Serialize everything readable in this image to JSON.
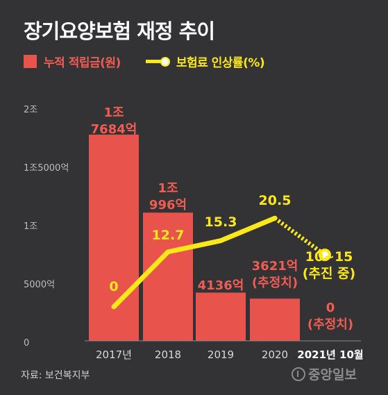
{
  "title": "장기요양보험 재정 추이",
  "legend": {
    "bar_label": "누적 적립금(원)",
    "line_label": "보험료 인상률(%)"
  },
  "colors": {
    "bar": "#e8544c",
    "bar_label": "#f15d52",
    "line": "#ffe81a",
    "axis_text": "#bdbdbd",
    "background": "#333335"
  },
  "source": "자료: 보건복지부",
  "logo": "중앙일보",
  "chart_data": {
    "type": "bar",
    "categories": [
      "2017년",
      "2018",
      "2019",
      "2020",
      "2021년 10월"
    ],
    "y_ticks": [
      "2조",
      "1조5000억",
      "1조",
      "5000억",
      "0"
    ],
    "ylim": [
      0,
      20000
    ],
    "grid": false,
    "series": [
      {
        "name": "누적 적립금(원)",
        "type": "bar",
        "values": [
          17684,
          10996,
          4136,
          3621,
          0
        ],
        "labels": [
          [
            "1조",
            "7684억"
          ],
          [
            "1조",
            "996억"
          ],
          [
            "4136억"
          ],
          [
            "3621억",
            "(추정치)"
          ],
          [
            "0",
            "(추정치)"
          ]
        ]
      },
      {
        "name": "보험료 인상률(%)",
        "type": "line",
        "values": [
          0,
          12.7,
          15.3,
          20.5,
          null
        ],
        "labels": [
          "0",
          "12.7",
          "15.3",
          "20.5",
          [
            "10~15",
            "(추진 중)"
          ]
        ],
        "projected_range": [
          10,
          15
        ]
      }
    ]
  }
}
